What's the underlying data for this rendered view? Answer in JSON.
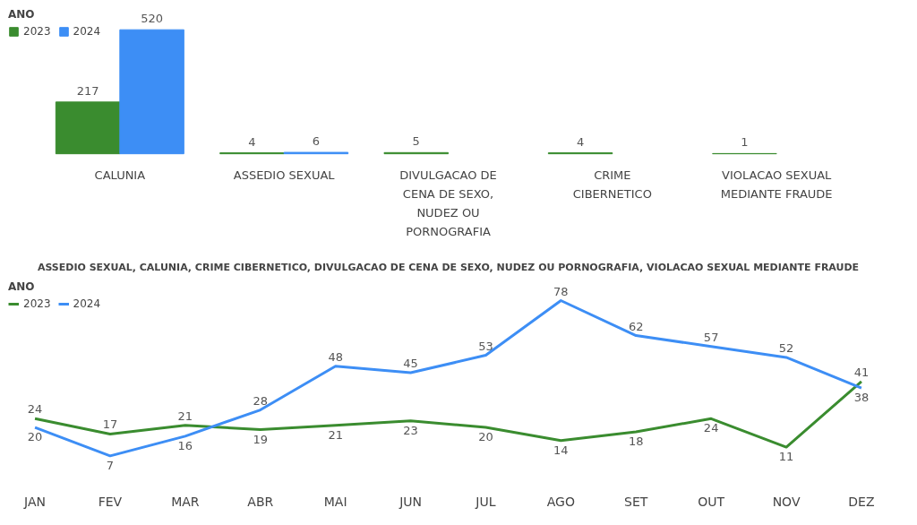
{
  "chart_data": [
    {
      "type": "bar",
      "legend_title": "ANO",
      "legend": "top left",
      "data_labels": true,
      "grid": false,
      "categories": [
        "CALUNIA",
        "ASSEDIO SEXUAL",
        "DIVULGACAO DE CENA DE SEXO, NUDEZ OU PORNOGRAFIA",
        "CRIME CIBERNETICO",
        "VIOLACAO SEXUAL MEDIANTE FRAUDE"
      ],
      "series": [
        {
          "name": "2023",
          "color": "#3a8c2f",
          "values": [
            217,
            4,
            5,
            4,
            1
          ]
        },
        {
          "name": "2024",
          "color": "#3d8ef5",
          "values": [
            520,
            6,
            null,
            null,
            null
          ]
        }
      ]
    },
    {
      "type": "line",
      "title": "ASSEDIO SEXUAL, CALUNIA, CRIME CIBERNETICO, DIVULGACAO DE CENA DE SEXO, NUDEZ OU PORNOGRAFIA, VIOLACAO SEXUAL MEDIANTE FRAUDE",
      "legend_title": "ANO",
      "legend": "top left",
      "data_labels": true,
      "grid": false,
      "marker": "none",
      "categories": [
        "JAN",
        "FEV",
        "MAR",
        "ABR",
        "MAI",
        "JUN",
        "JUL",
        "AGO",
        "SET",
        "OUT",
        "NOV",
        "DEZ"
      ],
      "series": [
        {
          "name": "2023",
          "color": "#3a8c2f",
          "values": [
            24,
            17,
            21,
            19,
            21,
            23,
            20,
            14,
            18,
            24,
            11,
            41
          ]
        },
        {
          "name": "2024",
          "color": "#3d8ef5",
          "values": [
            20,
            7,
            16,
            28,
            48,
            45,
            53,
            78,
            62,
            57,
            52,
            38
          ]
        }
      ]
    }
  ]
}
